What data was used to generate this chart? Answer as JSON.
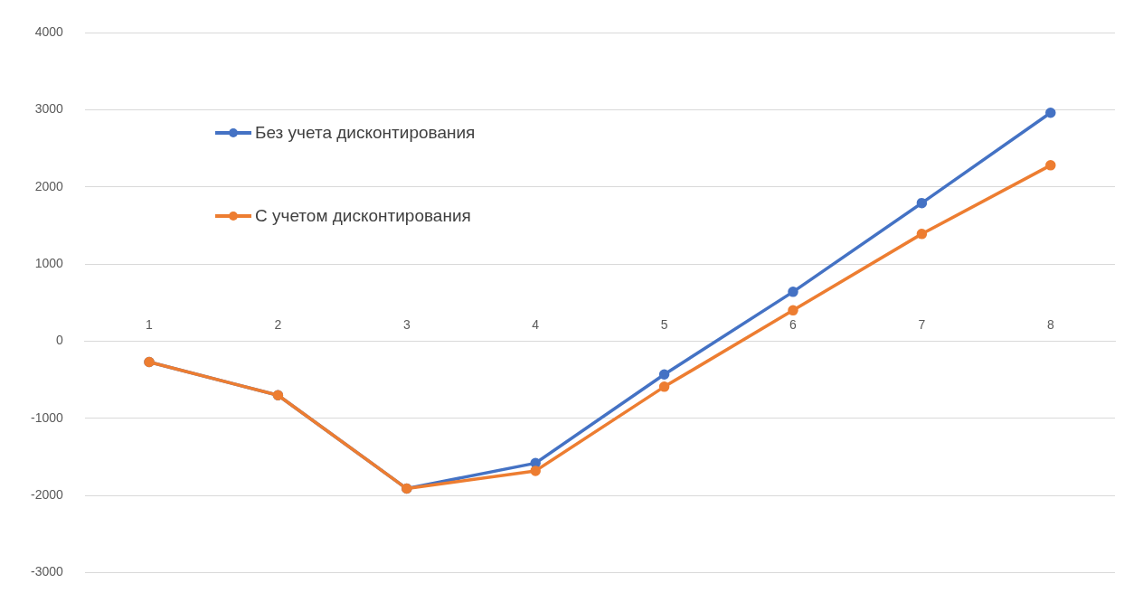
{
  "chart_data": {
    "type": "line",
    "categories": [
      "1",
      "2",
      "3",
      "4",
      "5",
      "6",
      "7",
      "8"
    ],
    "series": [
      {
        "name": "Без учета дисконтирования",
        "color": "#4472c4",
        "values": [
          -270,
          -700,
          -1910,
          -1580,
          -430,
          640,
          1790,
          2960
        ]
      },
      {
        "name": "С учетом дисконтирования",
        "color": "#ed7d31",
        "values": [
          -270,
          -700,
          -1910,
          -1680,
          -590,
          400,
          1390,
          2280
        ]
      }
    ],
    "ylim": [
      -3000,
      4000
    ],
    "yticks": [
      -3000,
      -2000,
      -1000,
      0,
      1000,
      2000,
      3000,
      4000
    ],
    "grid": "y",
    "legend": "top left",
    "marker": "circle",
    "line_style": "solid"
  }
}
